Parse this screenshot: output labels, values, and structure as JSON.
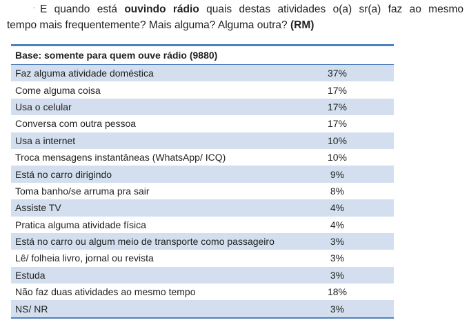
{
  "question": {
    "bullet": ".",
    "pre": "E quando está ",
    "bold": "ouvindo rádio",
    "post": " quais destas atividades o(a) sr(a) faz ao mesmo",
    "line2": "tempo mais frequentemente? Mais alguma? Alguma outra? ",
    "tag": "(RM)"
  },
  "table": {
    "header": "Base: somente para quem ouve rádio (9880)",
    "rows": [
      {
        "label": "Faz alguma atividade doméstica",
        "value": "37%"
      },
      {
        "label": "Come alguma coisa",
        "value": "17%"
      },
      {
        "label": "Usa o celular",
        "value": "17%"
      },
      {
        "label": "Conversa com outra pessoa",
        "value": "17%"
      },
      {
        "label": "Usa a internet",
        "value": "10%"
      },
      {
        "label": "Troca mensagens instantâneas (WhatsApp/ ICQ)",
        "value": "10%"
      },
      {
        "label": "Está no carro dirigindo",
        "value": "9%"
      },
      {
        "label": "Toma banho/se arruma pra sair",
        "value": "8%"
      },
      {
        "label": "Assiste TV",
        "value": "4%"
      },
      {
        "label": "Pratica alguma atividade física",
        "value": "4%"
      },
      {
        "label": "Está no carro ou algum meio de transporte como passageiro",
        "value": "3%"
      },
      {
        "label": "Lê/ folheia livro, jornal ou revista",
        "value": "3%"
      },
      {
        "label": "Estuda",
        "value": "3%"
      },
      {
        "label": "Não faz duas atividades ao mesmo tempo",
        "value": "18%"
      },
      {
        "label": "NS/ NR",
        "value": "3%"
      }
    ]
  }
}
